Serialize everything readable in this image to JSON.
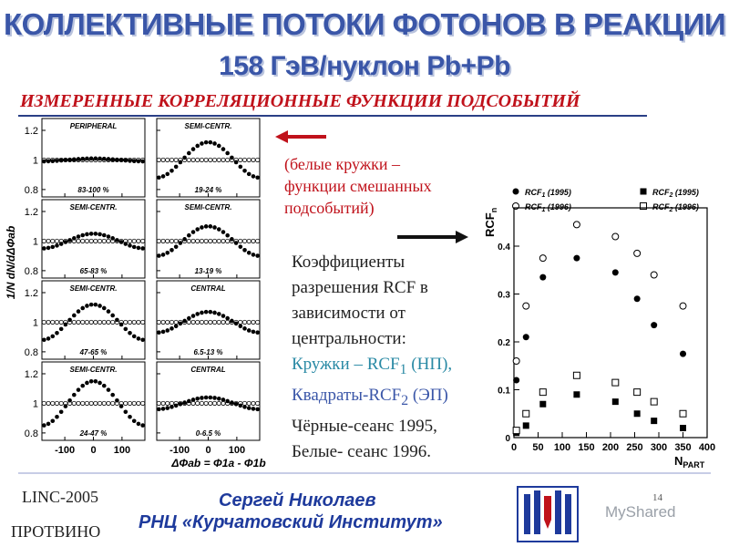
{
  "slide": {
    "title_line1": "КОЛЛЕКТИВНЫЕ ПОТОКИ ФОТОНОВ В РЕАКЦИИ",
    "title_line2": "158 ГэВ/нуклон Pb+Pb",
    "subtitle": "ИЗМЕРЕННЫЕ КОРРЕЛЯЦИОННЫЕ ФУНКЦИИ ПОДСОБЫТИЙ",
    "note_lines": [
      "(белые кружки –",
      "функции смешанных",
      "подсобытий)"
    ],
    "desc_line1": "Коэффициенты",
    "desc_line2": "разрешения RCF в",
    "desc_line3": "зависимости от",
    "desc_line4": "центральности:",
    "desc_line5_pre": "Кружки – RCF",
    "desc_line5_sub": "1",
    "desc_line5_post": " (НП),",
    "desc_line6_pre": "Квадраты-RCF",
    "desc_line6_sub": "2",
    "desc_line6_post": " (ЭП)",
    "desc_line7": "Чёрные-сеанс 1995,",
    "desc_line8": "Белые- сеанс 1996.",
    "conference": "LINC-2005",
    "city": "ПРОТВИНО",
    "author": "Сергей Николаев",
    "institute": "РНЦ «Курчатовский Институт»",
    "page_number": "14",
    "watermark": "MyShared"
  },
  "colors": {
    "title": "#3a56a8",
    "subtitle": "#c0121b",
    "arrow": "#c0121b",
    "text_blue": "#3a56a8"
  },
  "chart_data": [
    {
      "type": "scatter",
      "name": "subevent-correlation-grid",
      "ylabel": "1/N dN/dΔΦab",
      "xlabel": "ΔΦab = Φ1a - Φ1b",
      "xlim": [
        -180,
        180
      ],
      "ylim": [
        0.75,
        1.28
      ],
      "xticks": [
        "-100",
        "0",
        "100"
      ],
      "yticks": [
        "0.8",
        "1",
        "1.2"
      ],
      "xtick_values": [
        -100,
        0,
        100
      ],
      "ytick_values": [
        0.8,
        1.0,
        1.2
      ],
      "panels": [
        {
          "label": "PERIPHERAL",
          "range": "83-100 %",
          "amp": 0.01
        },
        {
          "label": "SEMI-CENTR.",
          "range": "19-24 %",
          "amp": 0.12
        },
        {
          "label": "SEMI-CENTR.",
          "range": "65-83 %",
          "amp": 0.05
        },
        {
          "label": "SEMI-CENTR.",
          "range": "13-19 %",
          "amp": 0.1
        },
        {
          "label": "SEMI-CENTR.",
          "range": "47-65 %",
          "amp": 0.12
        },
        {
          "label": "CENTRAL",
          "range": "6.5-13 %",
          "amp": 0.07
        },
        {
          "label": "SEMI-CENTR.",
          "range": "24-47 %",
          "amp": 0.15
        },
        {
          "label": "CENTRAL",
          "range": "0-6.5 %",
          "amp": 0.04
        }
      ]
    },
    {
      "type": "scatter",
      "name": "rcf-vs-npart",
      "xlabel": "N",
      "xlabel_sub": "PART",
      "ylabel": "RCF",
      "ylabel_sub": "n",
      "xlim": [
        0,
        400
      ],
      "ylim": [
        0,
        0.48
      ],
      "xticks": [
        0,
        50,
        100,
        150,
        200,
        250,
        300,
        350,
        400
      ],
      "yticks": [
        0,
        0.1,
        0.2,
        0.3,
        0.4
      ],
      "legend": [
        {
          "text": "RCF1 (1995)",
          "main": "RCF",
          "sub": "1",
          "year": " (1995)",
          "marker": "filled-circle"
        },
        {
          "text": "RCF2 (1995)",
          "main": "RCF",
          "sub": "2",
          "year": " (1995)",
          "marker": "filled-square"
        },
        {
          "text": "RCF1 (1996)",
          "main": "RCF",
          "sub": "1",
          "year": " (1996)",
          "marker": "open-circle"
        },
        {
          "text": "RCF2 (1996)",
          "main": "RCF",
          "sub": "2",
          "year": " (1996)",
          "marker": "open-square"
        }
      ],
      "series": [
        {
          "name": "RCF1 (1995)",
          "marker": "filled-circle",
          "x": [
            5,
            25,
            60,
            130,
            210,
            255,
            290,
            350
          ],
          "y": [
            0.12,
            0.21,
            0.335,
            0.375,
            0.345,
            0.29,
            0.235,
            0.175
          ]
        },
        {
          "name": "RCF1 (1996)",
          "marker": "open-circle",
          "x": [
            5,
            25,
            60,
            130,
            210,
            255,
            290,
            350
          ],
          "y": [
            0.16,
            0.275,
            0.375,
            0.445,
            0.42,
            0.385,
            0.34,
            0.275
          ]
        },
        {
          "name": "RCF2 (1995)",
          "marker": "filled-square",
          "x": [
            5,
            25,
            60,
            130,
            210,
            255,
            290,
            350
          ],
          "y": [
            0.01,
            0.025,
            0.07,
            0.09,
            0.075,
            0.05,
            0.035,
            0.02
          ]
        },
        {
          "name": "RCF2 (1996)",
          "marker": "open-square",
          "x": [
            5,
            25,
            60,
            130,
            210,
            255,
            290,
            350
          ],
          "y": [
            0.015,
            0.05,
            0.095,
            0.13,
            0.115,
            0.095,
            0.075,
            0.05
          ]
        }
      ]
    }
  ]
}
